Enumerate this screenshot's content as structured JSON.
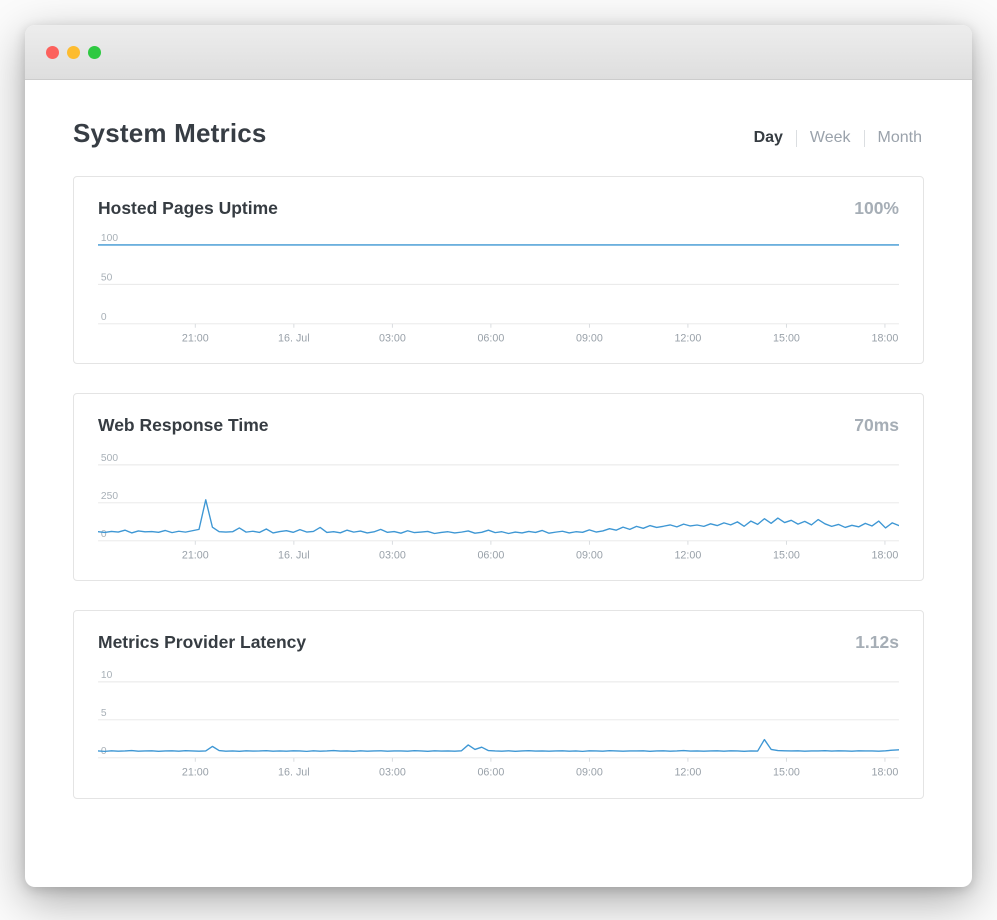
{
  "header": {
    "title": "System Metrics",
    "tabs": [
      {
        "label": "Day",
        "active": true
      },
      {
        "label": "Week",
        "active": false
      },
      {
        "label": "Month",
        "active": false
      }
    ]
  },
  "colors": {
    "line": "#3e97d4",
    "heading_text": "#373d44",
    "muted_text": "#9aa2ab",
    "card_border": "#e4e4e4",
    "traffic_close": "#fc615d",
    "traffic_minimize": "#fdbc2f",
    "traffic_zoom": "#2ec941"
  },
  "chart_data": [
    {
      "type": "line",
      "title": "Hosted Pages Uptime",
      "value": "100%",
      "ylabel": "",
      "xlabel": "",
      "ylim": [
        0,
        104
      ],
      "ymax": 104,
      "yticks": [
        0,
        50,
        100
      ],
      "xticks": [
        "21:00",
        "16. Jul",
        "03:00",
        "06:00",
        "09:00",
        "12:00",
        "15:00",
        "18:00"
      ],
      "values": [
        100,
        100
      ]
    },
    {
      "type": "line",
      "title": "Web Response Time",
      "value": "70ms",
      "ylabel": "",
      "xlabel": "",
      "ylim": [
        0,
        540
      ],
      "ymax": 540,
      "yticks": [
        0,
        250,
        500
      ],
      "xticks": [
        "21:00",
        "16. Jul",
        "03:00",
        "06:00",
        "09:00",
        "12:00",
        "15:00",
        "18:00"
      ],
      "values": [
        60,
        55,
        62,
        58,
        70,
        52,
        65,
        59,
        61,
        56,
        68,
        54,
        63,
        57,
        66,
        75,
        270,
        90,
        60,
        58,
        60,
        85,
        57,
        63,
        55,
        78,
        52,
        61,
        67,
        56,
        74,
        58,
        62,
        88,
        55,
        60,
        53,
        70,
        57,
        64,
        52,
        59,
        75,
        56,
        61,
        50,
        66,
        54,
        58,
        62,
        48,
        55,
        60,
        52,
        57,
        65,
        50,
        56,
        70,
        54,
        60,
        48,
        58,
        52,
        62,
        55,
        68,
        50,
        57,
        63,
        52,
        60,
        56,
        72,
        58,
        65,
        80,
        70,
        90,
        75,
        95,
        82,
        100,
        88,
        96,
        105,
        92,
        110,
        98,
        104,
        95,
        112,
        100,
        118,
        105,
        125,
        96,
        130,
        108,
        145,
        115,
        150,
        120,
        135,
        110,
        128,
        105,
        140,
        112,
        95,
        108,
        88,
        102,
        92,
        115,
        98,
        130,
        85,
        118,
        100
      ]
    },
    {
      "type": "line",
      "title": "Metrics Provider Latency",
      "value": "1.12s",
      "ylabel": "",
      "xlabel": "",
      "ylim": [
        0,
        10.8
      ],
      "ymax": 10.8,
      "yticks": [
        0,
        5,
        10
      ],
      "xticks": [
        "21:00",
        "16. Jul",
        "03:00",
        "06:00",
        "09:00",
        "12:00",
        "15:00",
        "18:00"
      ],
      "values": [
        0.9,
        0.85,
        0.92,
        0.88,
        0.9,
        0.95,
        0.87,
        0.9,
        0.93,
        0.86,
        0.9,
        0.92,
        0.88,
        0.94,
        0.9,
        0.87,
        0.91,
        1.5,
        0.95,
        0.88,
        0.9,
        0.86,
        0.92,
        0.89,
        0.9,
        0.94,
        0.87,
        0.91,
        0.88,
        0.93,
        0.9,
        0.85,
        0.92,
        0.88,
        0.9,
        0.95,
        0.89,
        0.9,
        0.86,
        0.92,
        0.88,
        0.9,
        0.93,
        0.87,
        0.9,
        0.91,
        0.88,
        0.94,
        0.9,
        0.86,
        0.92,
        0.89,
        0.9,
        0.87,
        0.93,
        1.7,
        1.1,
        1.4,
        0.95,
        0.9,
        0.88,
        0.92,
        0.86,
        0.9,
        0.94,
        0.89,
        0.91,
        0.87,
        0.9,
        0.93,
        0.88,
        0.9,
        0.85,
        0.92,
        0.9,
        0.88,
        0.94,
        0.9,
        0.87,
        0.91,
        0.9,
        0.93,
        0.86,
        0.9,
        0.92,
        0.88,
        0.9,
        0.95,
        0.89,
        0.91,
        0.87,
        0.9,
        0.92,
        0.88,
        0.93,
        0.9,
        0.86,
        0.91,
        0.89,
        2.4,
        1.1,
        0.95,
        0.92,
        0.9,
        0.93,
        0.88,
        0.91,
        0.9,
        0.94,
        0.89,
        0.92,
        0.9,
        0.87,
        0.93,
        0.9,
        0.91,
        0.88,
        0.92,
        1.0,
        1.05
      ]
    }
  ]
}
